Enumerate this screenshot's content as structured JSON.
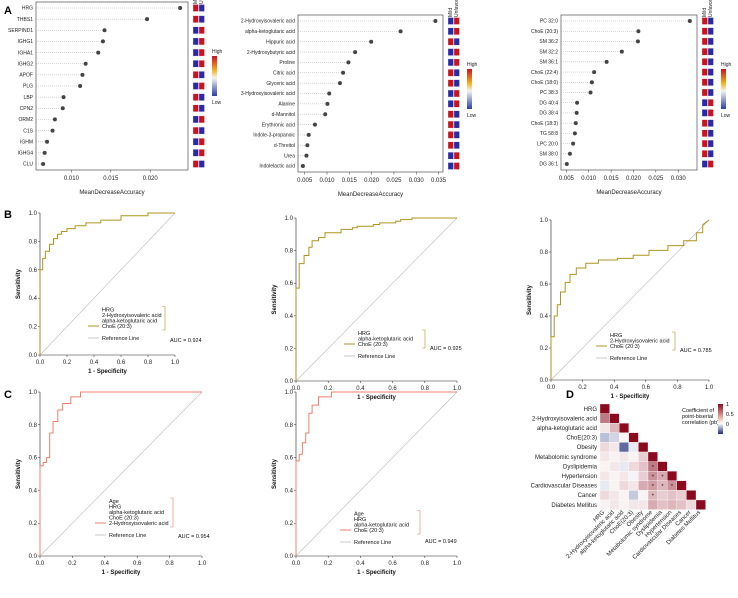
{
  "panels": {
    "A": "A",
    "B": "B",
    "C": "C",
    "D": "D"
  },
  "dot_plots": [
    {
      "xlabel": "MeanDecreaseAccuracy",
      "xticks": [
        0.01,
        0.015,
        0.02
      ],
      "xticklabels": [
        "0.010",
        "0.015",
        "0.020"
      ],
      "xlim": [
        0.0055,
        0.0248
      ],
      "legend_title": "High",
      "legend_low": "Low",
      "col_labels": [
        "Mild",
        "Unfavorable"
      ],
      "features": [
        {
          "name": "HRG",
          "value": 0.0238,
          "mild": "#c8141e",
          "unfav": "#2a2aa8"
        },
        {
          "name": "THBS1",
          "value": 0.0196,
          "mild": "#c8141e",
          "unfav": "#2a2aa8"
        },
        {
          "name": "SERPIND1",
          "value": 0.0142,
          "mild": "#2a2aa8",
          "unfav": "#c8141e"
        },
        {
          "name": "IGHG1",
          "value": 0.014,
          "mild": "#2a2aa8",
          "unfav": "#c8141e"
        },
        {
          "name": "IGHA1",
          "value": 0.0134,
          "mild": "#2a2aa8",
          "unfav": "#c8141e"
        },
        {
          "name": "IGHG2",
          "value": 0.0118,
          "mild": "#2a2aa8",
          "unfav": "#c8141e"
        },
        {
          "name": "APOF",
          "value": 0.0114,
          "mild": "#c8141e",
          "unfav": "#2a2aa8"
        },
        {
          "name": "PLG",
          "value": 0.0111,
          "mild": "#2a2aa8",
          "unfav": "#c8141e"
        },
        {
          "name": "LBP",
          "value": 0.009,
          "mild": "#c8141e",
          "unfav": "#2a2aa8"
        },
        {
          "name": "CPN2",
          "value": 0.0089,
          "mild": "#c8141e",
          "unfav": "#2a2aa8"
        },
        {
          "name": "ORM2",
          "value": 0.0079,
          "mild": "#2a2aa8",
          "unfav": "#c8141e"
        },
        {
          "name": "C1S",
          "value": 0.0076,
          "mild": "#c8141e",
          "unfav": "#2a2aa8"
        },
        {
          "name": "IGHM",
          "value": 0.0069,
          "mild": "#2a2aa8",
          "unfav": "#c8141e"
        },
        {
          "name": "IGHG4",
          "value": 0.0066,
          "mild": "#2a2aa8",
          "unfav": "#c8141e"
        },
        {
          "name": "CLU",
          "value": 0.0064,
          "mild": "#c8141e",
          "unfav": "#2a2aa8"
        }
      ]
    },
    {
      "xlabel": "MeanDecreaseAccuracy",
      "xticks": [
        0.005,
        0.01,
        0.015,
        0.02,
        0.025,
        0.03,
        0.035
      ],
      "xticklabels": [
        "0.005",
        "0.010",
        "0.015",
        "0.020",
        "0.025",
        "0.030",
        "0.035"
      ],
      "xlim": [
        0.0035,
        0.036
      ],
      "legend_title": "High",
      "legend_low": "Low",
      "col_labels": [
        "Mild",
        "Unfavorable"
      ],
      "features": [
        {
          "name": "2-Hydroxyisovaleric acid",
          "value": 0.0343,
          "mild": "#2a2aa8",
          "unfav": "#c8141e"
        },
        {
          "name": "alpha-ketoglutaric acid",
          "value": 0.0265,
          "mild": "#2a2aa8",
          "unfav": "#c8141e"
        },
        {
          "name": "Hippuric acid",
          "value": 0.0199,
          "mild": "#c8141e",
          "unfav": "#2a2aa8"
        },
        {
          "name": "2-Hydroxybutyric acid",
          "value": 0.0163,
          "mild": "#2a2aa8",
          "unfav": "#c8141e"
        },
        {
          "name": "Proline",
          "value": 0.0148,
          "mild": "#2a2aa8",
          "unfav": "#c8141e"
        },
        {
          "name": "Citric acid",
          "value": 0.0136,
          "mild": "#c8141e",
          "unfav": "#2a2aa8"
        },
        {
          "name": "Glyceric acid",
          "value": 0.0129,
          "mild": "#c8141e",
          "unfav": "#2a2aa8"
        },
        {
          "name": "3-Hydroxyisovaleric acid",
          "value": 0.0105,
          "mild": "#2a2aa8",
          "unfav": "#c8141e"
        },
        {
          "name": "Alanine",
          "value": 0.0101,
          "mild": "#2a2aa8",
          "unfav": "#c8141e"
        },
        {
          "name": "d-Mannitol",
          "value": 0.0096,
          "mild": "#c8141e",
          "unfav": "#2a2aa8"
        },
        {
          "name": "Erythronic acid",
          "value": 0.0073,
          "mild": "#c8141e",
          "unfav": "#2a2aa8"
        },
        {
          "name": "Indole-3-propanoic",
          "value": 0.0059,
          "mild": "#c8141e",
          "unfav": "#2a2aa8"
        },
        {
          "name": "d-Threitol",
          "value": 0.0056,
          "mild": "#c8141e",
          "unfav": "#2a2aa8"
        },
        {
          "name": "Urea",
          "value": 0.0054,
          "mild": "#2a2aa8",
          "unfav": "#c8141e"
        },
        {
          "name": "Indolelactic acid",
          "value": 0.0046,
          "mild": "#2a2aa8",
          "unfav": "#c8141e"
        }
      ]
    },
    {
      "xlabel": "MeanDecreaseAccuracy",
      "xticks": [
        0.005,
        0.01,
        0.015,
        0.02,
        0.025,
        0.03
      ],
      "xticklabels": [
        "0.005",
        "0.010",
        "0.015",
        "0.020",
        "0.025",
        "0.030"
      ],
      "xlim": [
        0.0038,
        0.0342
      ],
      "legend_title": "High",
      "legend_low": "Low",
      "col_labels": [
        "Mild",
        "Unfavorable"
      ],
      "features": [
        {
          "name": "PC 32:0",
          "value": 0.0326,
          "mild": "#c8141e",
          "unfav": "#2a2aa8"
        },
        {
          "name": "ChoE (20:3)",
          "value": 0.0211,
          "mild": "#c8141e",
          "unfav": "#2a2aa8"
        },
        {
          "name": "SM 36:2",
          "value": 0.021,
          "mild": "#c8141e",
          "unfav": "#2a2aa8"
        },
        {
          "name": "SM 32:2",
          "value": 0.0174,
          "mild": "#c8141e",
          "unfav": "#2a2aa8"
        },
        {
          "name": "SM 36:1",
          "value": 0.014,
          "mild": "#c8141e",
          "unfav": "#2a2aa8"
        },
        {
          "name": "ChoE (22:4)",
          "value": 0.0112,
          "mild": "#c8141e",
          "unfav": "#2a2aa8"
        },
        {
          "name": "ChoE (18:0)",
          "value": 0.0107,
          "mild": "#c8141e",
          "unfav": "#2a2aa8"
        },
        {
          "name": "PC 38:3",
          "value": 0.0104,
          "mild": "#c8141e",
          "unfav": "#2a2aa8"
        },
        {
          "name": "DG 40:4",
          "value": 0.0074,
          "mild": "#2a2aa8",
          "unfav": "#c8141e"
        },
        {
          "name": "DG 38:4",
          "value": 0.0073,
          "mild": "#2a2aa8",
          "unfav": "#c8141e"
        },
        {
          "name": "ChoE (18:3)",
          "value": 0.0071,
          "mild": "#c8141e",
          "unfav": "#2a2aa8"
        },
        {
          "name": "TG 58:8",
          "value": 0.0069,
          "mild": "#c8141e",
          "unfav": "#2a2aa8"
        },
        {
          "name": "LPC 20:0",
          "value": 0.0065,
          "mild": "#c8141e",
          "unfav": "#2a2aa8"
        },
        {
          "name": "SM 38:0",
          "value": 0.0058,
          "mild": "#c8141e",
          "unfav": "#2a2aa8"
        },
        {
          "name": "DG 36:1",
          "value": 0.0051,
          "mild": "#2a2aa8",
          "unfav": "#c8141e"
        }
      ]
    }
  ],
  "chart_data": [
    {
      "type": "line",
      "panel": "B1",
      "title": "",
      "xlabel": "1 - Specificity",
      "ylabel": "Sensitivity",
      "xlim": [
        0,
        1
      ],
      "ylim": [
        0,
        1
      ],
      "ticks": [
        "0.0",
        "0.2",
        "0.4",
        "0.6",
        "0.8",
        "1.0"
      ],
      "tick_values": [
        0,
        0.2,
        0.4,
        0.6,
        0.8,
        1.0
      ],
      "color": "#b0951c",
      "legend": [
        "HRG",
        "2-Hydroxyisovaleric acid",
        "alpha-ketoglutaric acid",
        "ChoE (20:3)"
      ],
      "auc": "AUC = 0.924",
      "reference": "Reference Line",
      "x": [
        0,
        0,
        0.02,
        0.02,
        0.04,
        0.04,
        0.07,
        0.07,
        0.1,
        0.1,
        0.13,
        0.13,
        0.16,
        0.16,
        0.2,
        0.2,
        0.26,
        0.26,
        0.34,
        0.34,
        0.45,
        0.45,
        0.6,
        0.6,
        0.8,
        0.8,
        1.0,
        1.0
      ],
      "y": [
        0,
        0.6,
        0.6,
        0.68,
        0.68,
        0.73,
        0.73,
        0.78,
        0.78,
        0.82,
        0.82,
        0.85,
        0.85,
        0.87,
        0.87,
        0.89,
        0.89,
        0.91,
        0.91,
        0.93,
        0.93,
        0.95,
        0.95,
        0.98,
        0.98,
        1.0,
        1.0,
        1.0
      ]
    },
    {
      "type": "line",
      "panel": "B2",
      "title": "",
      "xlabel": "1 - Specificity",
      "ylabel": "Sensitivity",
      "xlim": [
        0,
        1
      ],
      "ylim": [
        0,
        1
      ],
      "ticks": [
        "0.0",
        "0.2",
        "0.4",
        "0.6",
        "0.8",
        "1.0"
      ],
      "tick_values": [
        0,
        0.2,
        0.4,
        0.6,
        0.8,
        1.0
      ],
      "color": "#b0951c",
      "legend": [
        "HRG",
        "alpha-ketoglutaric acid",
        "ChoE (20:3)"
      ],
      "auc": "AUC = 0.925",
      "reference": "Reference Line",
      "x": [
        0,
        0,
        0.02,
        0.02,
        0.05,
        0.05,
        0.08,
        0.08,
        0.1,
        0.1,
        0.14,
        0.14,
        0.18,
        0.18,
        0.28,
        0.28,
        0.35,
        0.35,
        0.38,
        0.38,
        0.48,
        0.48,
        0.52,
        0.52,
        0.62,
        0.62,
        0.65,
        0.65,
        0.72,
        0.72,
        1.0
      ],
      "y": [
        0,
        0.57,
        0.57,
        0.72,
        0.72,
        0.77,
        0.77,
        0.82,
        0.82,
        0.86,
        0.86,
        0.88,
        0.88,
        0.91,
        0.91,
        0.93,
        0.93,
        0.94,
        0.94,
        0.95,
        0.95,
        0.96,
        0.96,
        0.97,
        0.97,
        0.98,
        0.98,
        0.99,
        0.99,
        1.0,
        1.0
      ]
    },
    {
      "type": "line",
      "panel": "B3",
      "title": "",
      "xlabel": "1 - Specificity",
      "ylabel": "Sensitivity",
      "xlim": [
        0,
        1
      ],
      "ylim": [
        0,
        1
      ],
      "ticks": [
        "0.0",
        "0.2",
        "0.4",
        "0.6",
        "0.8",
        "1.0"
      ],
      "tick_values": [
        0,
        0.2,
        0.4,
        0.6,
        0.8,
        1.0
      ],
      "color": "#b0951c",
      "legend": [
        "HRG",
        "2-Hydroxyisovaleric acid",
        "ChoE (20:3)"
      ],
      "auc": "AUC = 0.785",
      "reference": "Reference Line",
      "x": [
        0,
        0,
        0.02,
        0.02,
        0.04,
        0.04,
        0.06,
        0.06,
        0.09,
        0.09,
        0.12,
        0.12,
        0.16,
        0.16,
        0.22,
        0.22,
        0.3,
        0.3,
        0.42,
        0.42,
        0.52,
        0.52,
        0.62,
        0.62,
        0.74,
        0.74,
        0.84,
        0.84,
        0.92,
        0.92,
        0.96,
        0.96,
        1.0
      ],
      "y": [
        0,
        0.27,
        0.27,
        0.4,
        0.4,
        0.47,
        0.47,
        0.55,
        0.55,
        0.61,
        0.61,
        0.66,
        0.66,
        0.7,
        0.7,
        0.73,
        0.73,
        0.75,
        0.75,
        0.76,
        0.76,
        0.78,
        0.78,
        0.81,
        0.81,
        0.84,
        0.84,
        0.87,
        0.87,
        0.92,
        0.92,
        0.97,
        1.0
      ]
    },
    {
      "type": "line",
      "panel": "C1",
      "title": "",
      "xlabel": "1 - Specificity",
      "ylabel": "Sensitivity",
      "xlim": [
        0,
        1
      ],
      "ylim": [
        0,
        1
      ],
      "ticks": [
        "0.0",
        "0.2",
        "0.4",
        "0.6",
        "0.8",
        "1.0"
      ],
      "tick_values": [
        0,
        0.2,
        0.4,
        0.6,
        0.8,
        1.0
      ],
      "color": "#f07f6c",
      "legend": [
        "Age",
        "HRG",
        "alpha-ketoglutaric acid",
        "ChoE (20:3)",
        "2-Hydroxyisovaleric acid"
      ],
      "auc": "AUC = 0.954",
      "reference": "Reference Line",
      "x": [
        0,
        0,
        0.02,
        0.02,
        0.04,
        0.04,
        0.06,
        0.06,
        0.08,
        0.08,
        0.11,
        0.11,
        0.14,
        0.14,
        0.19,
        0.19,
        0.25,
        0.25,
        1.0
      ],
      "y": [
        0,
        0.55,
        0.55,
        0.57,
        0.57,
        0.6,
        0.6,
        0.75,
        0.75,
        0.82,
        0.82,
        0.89,
        0.89,
        0.93,
        0.93,
        0.97,
        0.97,
        1.0,
        1.0
      ]
    },
    {
      "type": "line",
      "panel": "C2",
      "title": "",
      "xlabel": "1 - Specificity",
      "ylabel": "Sensitivity",
      "xlim": [
        0,
        1
      ],
      "ylim": [
        0,
        1
      ],
      "ticks": [
        "0.0",
        "0.2",
        "0.4",
        "0.6",
        "0.8",
        "1.0"
      ],
      "tick_values": [
        0,
        0.2,
        0.4,
        0.6,
        0.8,
        1.0
      ],
      "color": "#f07f6c",
      "legend": [
        "Age",
        "HRG",
        "alpha-ketoglutaric acid",
        "ChoE (20:3)"
      ],
      "auc": "AUC = 0.949",
      "reference": "Reference Line",
      "x": [
        0,
        0,
        0.02,
        0.02,
        0.04,
        0.04,
        0.06,
        0.06,
        0.08,
        0.08,
        0.1,
        0.1,
        0.14,
        0.14,
        0.22,
        0.22,
        1.0
      ],
      "y": [
        0,
        0.58,
        0.58,
        0.62,
        0.62,
        0.69,
        0.69,
        0.75,
        0.75,
        0.87,
        0.87,
        0.92,
        0.92,
        0.97,
        0.97,
        1.0,
        1.0
      ]
    },
    {
      "type": "heatmap",
      "panel": "D",
      "title": "",
      "xlabel": "",
      "ylabel": "",
      "variables": [
        "HRG",
        "2-Hydroxyisovaleric acid",
        "alpha-ketoglutaric acid",
        "ChoE(20:3)",
        "Obesity",
        "Metabolomic syndrome",
        "Dyslipidemia",
        "Hypertension",
        "Cardiovascular Diseases",
        "Cancer",
        "Diabetes Mellitus"
      ],
      "colorbar_title": "Coefficient of point-biserial correlation (pb)",
      "colorbar_ticks": [
        "1",
        "0.5",
        "0"
      ],
      "colorbar_tick_values": [
        1,
        0.5,
        0
      ],
      "lower_triangle": [
        [
          1
        ],
        [
          0.55,
          1
        ],
        [
          0.1,
          0.3,
          1
        ],
        [
          -0.3,
          -0.2,
          0.05,
          1
        ],
        [
          0.15,
          0.1,
          -0.7,
          -0.1,
          1
        ],
        [
          0.1,
          0.05,
          0.1,
          0.05,
          0.2,
          1
        ],
        [
          0.05,
          0.1,
          -0.1,
          0.15,
          0.25,
          0.55,
          1
        ],
        [
          0.1,
          0.05,
          0.1,
          -0.05,
          0.2,
          0.45,
          0.35,
          1
        ],
        [
          -0.1,
          0.05,
          0.15,
          0.1,
          0.35,
          0.4,
          0.3,
          0.45,
          1
        ],
        [
          0.15,
          0.1,
          0.05,
          -0.25,
          0.05,
          0.3,
          0.2,
          0.25,
          0.2,
          1
        ],
        [
          0.05,
          0.1,
          0.05,
          0.1,
          0.1,
          0.35,
          0.25,
          0.3,
          0.25,
          0.15,
          1
        ]
      ],
      "stars": [
        [
          6,
          5
        ],
        [
          7,
          5
        ],
        [
          7,
          6
        ],
        [
          8,
          5
        ],
        [
          8,
          6
        ],
        [
          8,
          7
        ],
        [
          9,
          5
        ]
      ],
      "star_text": "*"
    }
  ]
}
